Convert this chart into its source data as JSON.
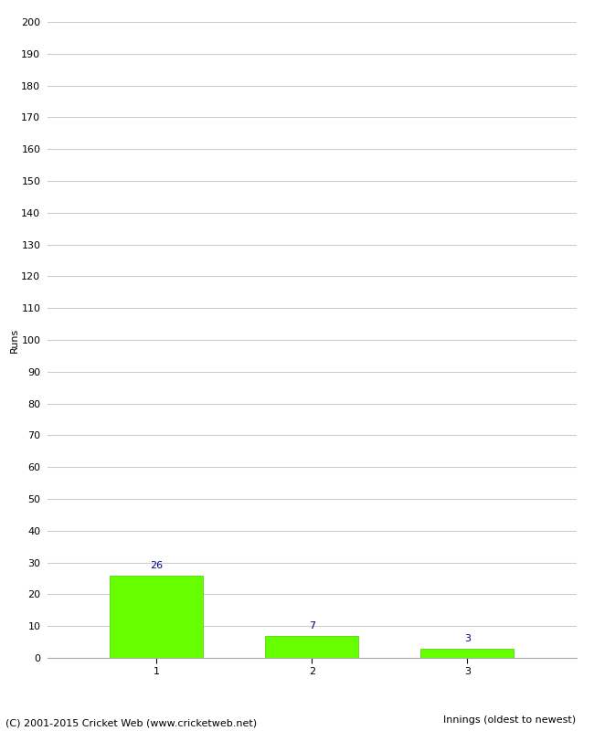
{
  "categories": [
    "1",
    "2",
    "3"
  ],
  "values": [
    26,
    7,
    3
  ],
  "bar_color": "#66ff00",
  "bar_edge_color": "#44cc00",
  "xlabel": "Innings (oldest to newest)",
  "ylabel": "Runs",
  "ylim": [
    0,
    200
  ],
  "ytick_step": 10,
  "value_label_color": "#000080",
  "value_label_fontsize": 8,
  "axis_label_fontsize": 8,
  "tick_label_fontsize": 8,
  "grid_color": "#cccccc",
  "background_color": "#ffffff",
  "footer": "(C) 2001-2015 Cricket Web (www.cricketweb.net)",
  "footer_fontsize": 8
}
